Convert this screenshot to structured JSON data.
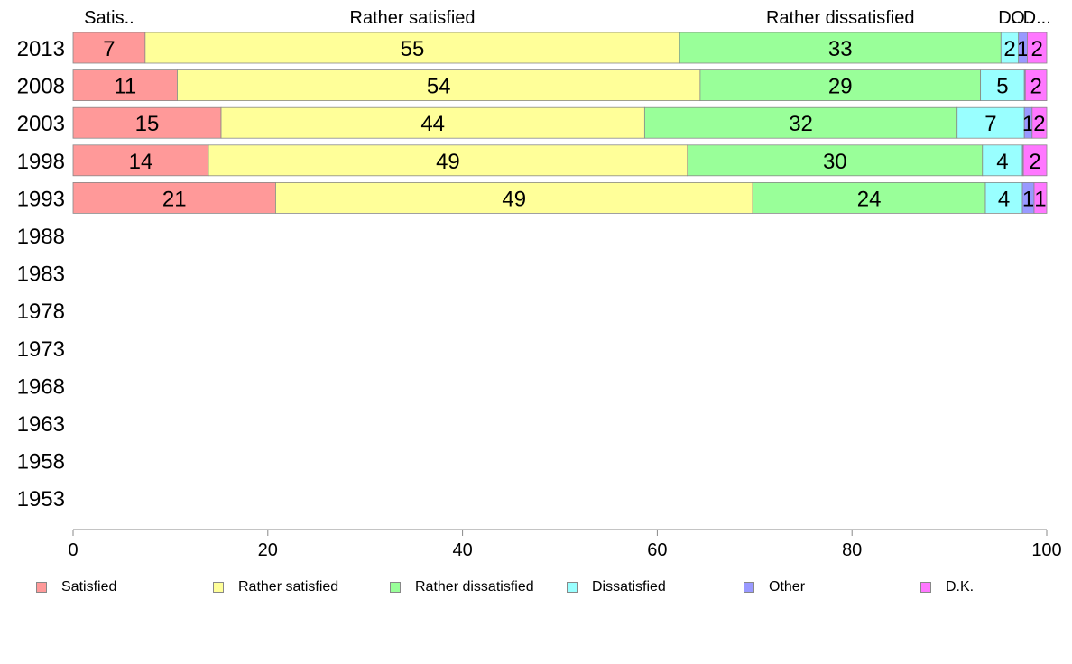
{
  "chart_data": {
    "type": "bar",
    "orientation": "horizontal",
    "stacked": true,
    "categories": [
      "2013",
      "2008",
      "2003",
      "1998",
      "1993",
      "1988",
      "1983",
      "1978",
      "1973",
      "1968",
      "1963",
      "1958",
      "1953"
    ],
    "series": [
      {
        "name": "Satisfied",
        "short_label": "Satis..",
        "color": "#ff9999",
        "values": [
          7.4,
          10.7,
          15.2,
          13.9,
          20.8,
          null,
          null,
          null,
          null,
          null,
          null,
          null,
          null
        ],
        "labels": [
          "7",
          "11",
          "15",
          "14",
          "21"
        ]
      },
      {
        "name": "Rather satisfied",
        "short_label": "Rather satisfied",
        "color": "#ffff99",
        "values": [
          54.9,
          53.7,
          43.5,
          49.2,
          49.0,
          null,
          null,
          null,
          null,
          null,
          null,
          null,
          null
        ],
        "labels": [
          "55",
          "54",
          "44",
          "49",
          "49"
        ]
      },
      {
        "name": "Rather dissatisfied",
        "short_label": "Rather dissatisfied",
        "color": "#99ff99",
        "values": [
          33.0,
          28.8,
          32.1,
          30.3,
          23.9,
          null,
          null,
          null,
          null,
          null,
          null,
          null,
          null
        ],
        "labels": [
          "33",
          "29",
          "32",
          "30",
          "24"
        ]
      },
      {
        "name": "Dissatisfied",
        "short_label": "D..",
        "color": "#99ffff",
        "values": [
          1.8,
          4.5,
          6.9,
          4.1,
          3.8,
          null,
          null,
          null,
          null,
          null,
          null,
          null,
          null
        ],
        "labels": [
          "2",
          "5",
          "7",
          "4",
          "4"
        ]
      },
      {
        "name": "Other",
        "short_label": "O..",
        "color": "#9999ff",
        "values": [
          0.9,
          0.1,
          0.8,
          0.1,
          1.2,
          null,
          null,
          null,
          null,
          null,
          null,
          null,
          null
        ],
        "labels": [
          "1",
          "",
          "1",
          "",
          "1"
        ]
      },
      {
        "name": "D.K.",
        "short_label": "D...",
        "color": "#ff77ff",
        "values": [
          2.0,
          2.2,
          1.5,
          2.4,
          1.3,
          null,
          null,
          null,
          null,
          null,
          null,
          null,
          null
        ],
        "labels": [
          "2",
          "2",
          "2",
          "2",
          "1"
        ]
      }
    ],
    "xlim": [
      0,
      100
    ],
    "xticks": [
      "0",
      "20",
      "40",
      "60",
      "80",
      "100"
    ],
    "grid": false,
    "legend_position": "bottom"
  }
}
